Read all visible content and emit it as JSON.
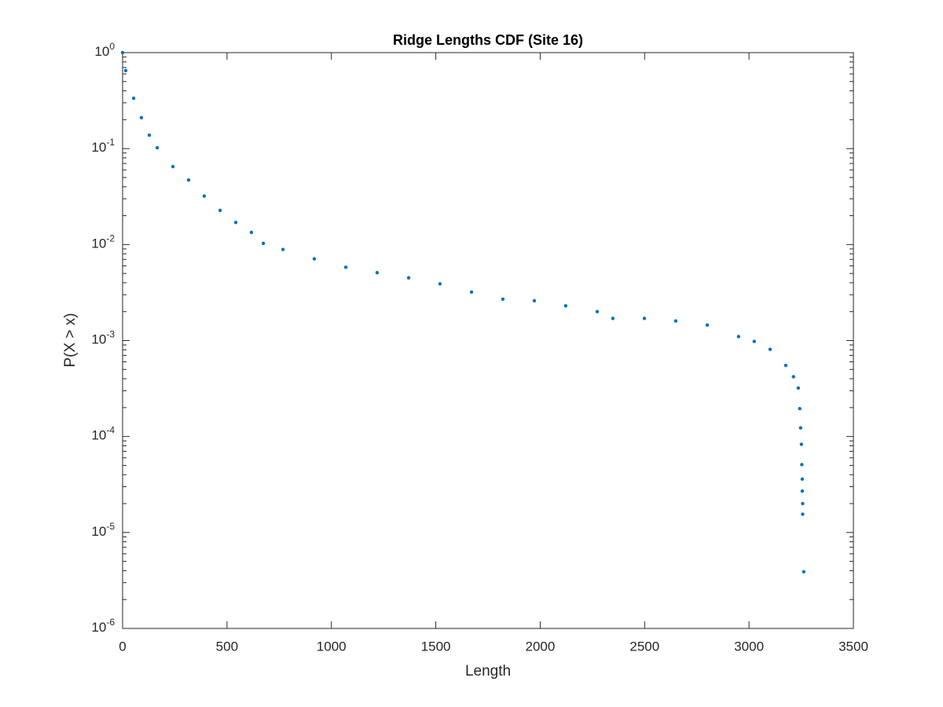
{
  "chart_data": {
    "type": "scatter",
    "title": "Ridge Lengths CDF (Site 16)",
    "x_label": "Length",
    "y_label": "P(X > x)",
    "color": "#0072bd",
    "log_y": true,
    "x": [
      0,
      15,
      53,
      90,
      128,
      166,
      241,
      316,
      391,
      467,
      542,
      617,
      674,
      768,
      918,
      1069,
      1219,
      1370,
      1520,
      1671,
      1821,
      1972,
      2122,
      2273,
      2348,
      2499,
      2649,
      2800,
      2950,
      3025,
      3101,
      3176,
      3213,
      3236,
      3243,
      3247,
      3251,
      3253,
      3255,
      3255,
      3257,
      3257,
      3262
    ],
    "values": [
      1,
      0.65,
      0.335,
      0.21,
      0.138,
      0.102,
      0.065,
      0.047,
      0.032,
      0.0227,
      0.017,
      0.0134,
      0.0103,
      0.0089,
      0.0071,
      0.0058,
      0.0051,
      0.0045,
      0.0039,
      0.0032,
      0.0027,
      0.0026,
      0.0023,
      0.002,
      0.0017,
      0.0017,
      0.0016,
      0.00145,
      0.0011,
      0.00098,
      0.00081,
      0.00055,
      0.00042,
      0.00032,
      0.000195,
      0.000123,
      8.3e-05,
      5.1e-05,
      3.6e-05,
      2.7e-05,
      2e-05,
      1.55e-05,
      3.9e-06
    ],
    "xlim": [
      0,
      3500
    ],
    "xticks": [
      0,
      500,
      1000,
      1500,
      2000,
      2500,
      3000,
      3500
    ],
    "ylim": [
      1e-06,
      1
    ],
    "yticks": [
      {
        "value": 1e-06,
        "label": "10^-6"
      },
      {
        "value": 1e-05,
        "label": "10^-5"
      },
      {
        "value": 0.0001,
        "label": "10^-4"
      },
      {
        "value": 0.001,
        "label": "10^-3"
      },
      {
        "value": 0.01,
        "label": "10^-2"
      },
      {
        "value": 0.1,
        "label": "10^-1"
      },
      {
        "value": 1,
        "label": "10^0"
      }
    ]
  }
}
